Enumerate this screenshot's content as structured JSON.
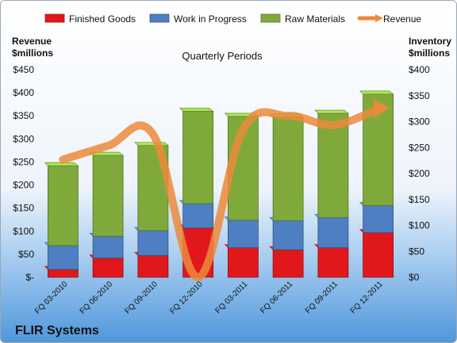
{
  "chart_data": {
    "type": "bar",
    "title": "Quarterly Periods",
    "company": "FLIR Systems",
    "categories": [
      "FQ 03-2010",
      "FQ 06-2010",
      "FQ 09-2010",
      "FQ 12-2010",
      "FQ 03-2011",
      "FQ 06-2011",
      "FQ 09-2011",
      "FQ 12-2011"
    ],
    "stacked": true,
    "series": [
      {
        "name": "Finished Goods",
        "axis": "right",
        "color": "#e0181c",
        "values": [
          15,
          37,
          42,
          95,
          57,
          53,
          57,
          86
        ]
      },
      {
        "name": "Work in Progress",
        "axis": "right",
        "color": "#4e7fc2",
        "values": [
          46,
          42,
          48,
          47,
          53,
          56,
          58,
          52
        ]
      },
      {
        "name": "Raw Materials",
        "axis": "right",
        "color": "#7faa3b",
        "values": [
          154,
          156,
          164,
          178,
          200,
          200,
          201,
          215
        ]
      },
      {
        "name": "Revenue",
        "type": "line",
        "axis": "left",
        "color": "#ec8a3b",
        "values": [
          255,
          285,
          310,
          0,
          320,
          350,
          330,
          365
        ]
      }
    ],
    "left_axis": {
      "label_line1": "Revenue",
      "label_line2": "$millions",
      "range": [
        0,
        450
      ],
      "ticks": [
        "$-",
        "$50",
        "$100",
        "$150",
        "$200",
        "$250",
        "$300",
        "$350",
        "$400",
        "$450"
      ]
    },
    "right_axis": {
      "label_line1": "Inventory",
      "label_line2": "$millions",
      "range": [
        0,
        400
      ],
      "ticks": [
        "$0",
        "$50",
        "$100",
        "$150",
        "$200",
        "$250",
        "$300",
        "$350",
        "$400"
      ]
    },
    "legend_position": "top",
    "grid": false
  }
}
